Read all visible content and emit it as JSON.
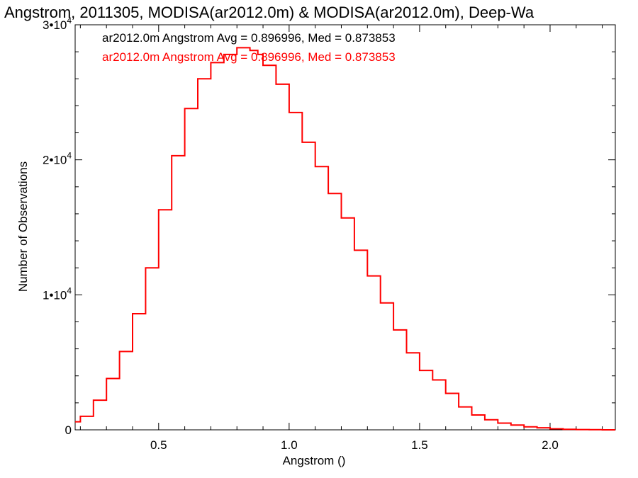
{
  "chart_data": {
    "type": "line",
    "title": "Angstrom, 2011305, MODISA(ar2012.0m) & MODISA(ar2012.0m), Deep-Wa",
    "xlabel": "Angstrom ()",
    "ylabel": "Number of Observations",
    "xlim": [
      0.18,
      2.25
    ],
    "ylim": [
      0,
      30000
    ],
    "xticks": [
      {
        "value": 0.5,
        "label": "0.5"
      },
      {
        "value": 1.0,
        "label": "1.0"
      },
      {
        "value": 1.5,
        "label": "1.5"
      },
      {
        "value": 2.0,
        "label": "2.0"
      }
    ],
    "yticks": [
      {
        "value": 0,
        "mant": "0",
        "exp": ""
      },
      {
        "value": 10000,
        "mant": "1•10",
        "exp": "4"
      },
      {
        "value": 20000,
        "mant": "2•10",
        "exp": "4"
      },
      {
        "value": 30000,
        "mant": "3•10",
        "exp": "4"
      }
    ],
    "legend": [
      {
        "text": "ar2012.0m Angstrom Avg = 0.896996, Med = 0.873853",
        "color": "#000000"
      },
      {
        "text": "ar2012.0m Angstrom Avg = 0.896996, Med = 0.873853",
        "color": "#ff0000"
      }
    ],
    "legend_position": "top-left",
    "grid": false,
    "series": [
      {
        "color": "#ff0000",
        "x": [
          0.18,
          0.2,
          0.25,
          0.3,
          0.35,
          0.4,
          0.45,
          0.5,
          0.55,
          0.6,
          0.65,
          0.7,
          0.75,
          0.8,
          0.83,
          0.85,
          0.88,
          0.9,
          0.95,
          1.0,
          1.05,
          1.1,
          1.15,
          1.2,
          1.25,
          1.3,
          1.35,
          1.4,
          1.45,
          1.5,
          1.55,
          1.6,
          1.65,
          1.7,
          1.75,
          1.8,
          1.85,
          1.9,
          1.95,
          2.0,
          2.05,
          2.1,
          2.15,
          2.2,
          2.25
        ],
        "values": [
          600,
          1000,
          2200,
          3800,
          5800,
          8600,
          12000,
          16300,
          20300,
          23800,
          26000,
          27200,
          27800,
          28300,
          28300,
          28100,
          27800,
          27000,
          25600,
          23500,
          21300,
          19500,
          17500,
          15700,
          13300,
          11400,
          9400,
          7400,
          5700,
          4400,
          3700,
          2700,
          1700,
          1100,
          750,
          500,
          350,
          220,
          150,
          80,
          40,
          20,
          10,
          0,
          0
        ]
      }
    ]
  }
}
